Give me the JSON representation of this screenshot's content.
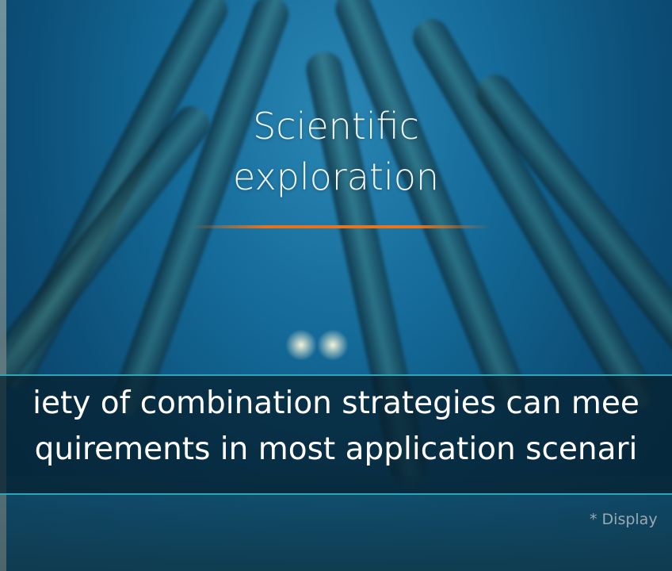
{
  "hero": {
    "title_lines": [
      "Scientific",
      "exploration"
    ]
  },
  "banner": {
    "lines": [
      "iety of combination strategies can mee",
      "quirements in most application scenari"
    ]
  },
  "footnote": "* Display"
}
